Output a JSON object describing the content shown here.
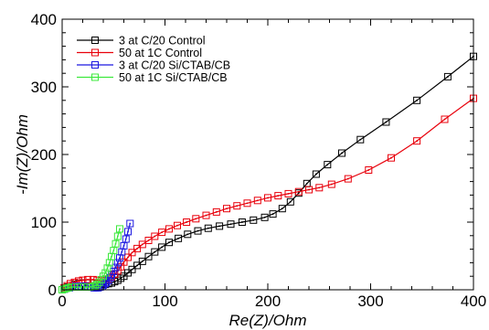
{
  "chart_data": {
    "type": "scatter",
    "xlabel": "Re(Z)/Ohm",
    "ylabel": "-Im(Z)/Ohm",
    "xlim": [
      0,
      400
    ],
    "ylim": [
      0,
      400
    ],
    "xticks": [
      0,
      100,
      200,
      300,
      400
    ],
    "yticks": [
      0,
      100,
      200,
      300,
      400
    ],
    "grid": false,
    "legend_position": "top-left",
    "series": [
      {
        "name": "3 at C/20 Control",
        "color": "#000000",
        "marker": "square",
        "x": [
          0,
          2,
          5,
          8,
          12,
          16,
          20,
          25,
          30,
          34,
          38,
          42,
          45,
          48,
          51,
          54,
          57,
          60,
          64,
          68,
          73,
          78,
          84,
          90,
          97,
          104,
          113,
          122,
          132,
          142,
          153,
          164,
          175,
          186,
          197,
          205,
          214,
          222,
          230,
          238,
          247,
          258,
          272,
          290,
          315,
          345,
          375,
          400
        ],
        "y": [
          0,
          2,
          4,
          6,
          8,
          9,
          10,
          10,
          10,
          9,
          8,
          8,
          9,
          10,
          12,
          14,
          17,
          20,
          25,
          30,
          36,
          42,
          49,
          56,
          63,
          70,
          76,
          82,
          87,
          91,
          94,
          97,
          100,
          103,
          107,
          112,
          120,
          130,
          143,
          157,
          171,
          185,
          202,
          222,
          248,
          280,
          315,
          345
        ]
      },
      {
        "name": "50 at 1C Control",
        "color": "#e8000b",
        "marker": "square",
        "x": [
          0,
          2,
          5,
          8,
          12,
          16,
          20,
          25,
          30,
          34,
          38,
          42,
          45,
          48,
          51,
          54,
          57,
          60,
          64,
          68,
          73,
          78,
          84,
          90,
          97,
          104,
          112,
          121,
          130,
          140,
          150,
          160,
          170,
          180,
          190,
          200,
          210,
          220,
          230,
          240,
          250,
          262,
          278,
          298,
          320,
          345,
          372,
          400
        ],
        "y": [
          0,
          3,
          6,
          9,
          11,
          13,
          14,
          15,
          15,
          14,
          13,
          14,
          16,
          19,
          23,
          28,
          34,
          41,
          48,
          55,
          61,
          67,
          73,
          79,
          85,
          90,
          95,
          100,
          105,
          110,
          115,
          120,
          124,
          128,
          132,
          136,
          139,
          142,
          145,
          148,
          151,
          156,
          164,
          177,
          195,
          220,
          252,
          283
        ]
      },
      {
        "name": "3 at C/20 Si/CTAB/CB",
        "color": "#1c18e0",
        "marker": "square",
        "x": [
          0,
          2,
          4,
          7,
          10,
          13,
          16,
          19,
          22,
          25,
          28,
          31,
          33,
          35,
          37,
          39,
          40,
          42,
          43,
          45,
          47,
          48,
          50,
          52,
          54,
          56,
          58,
          60,
          62,
          64,
          66
        ],
        "y": [
          0,
          1,
          2,
          3,
          4,
          5,
          5,
          5,
          5,
          4,
          4,
          3,
          3,
          3,
          4,
          5,
          7,
          9,
          11,
          14,
          18,
          22,
          27,
          33,
          40,
          47,
          56,
          65,
          75,
          86,
          98
        ]
      },
      {
        "name": "50 at 1C Si/CTAB/CB",
        "color": "#3ce83c",
        "marker": "square",
        "x": [
          0,
          2,
          4,
          6,
          9,
          12,
          15,
          18,
          21,
          24,
          27,
          30,
          32,
          34,
          36,
          38,
          40,
          42,
          44,
          46,
          48,
          50,
          52,
          54,
          56
        ],
        "y": [
          0,
          1,
          2,
          3,
          4,
          4,
          4,
          4,
          4,
          4,
          4,
          5,
          6,
          8,
          11,
          15,
          20,
          25,
          32,
          40,
          49,
          58,
          68,
          79,
          90
        ]
      }
    ]
  }
}
